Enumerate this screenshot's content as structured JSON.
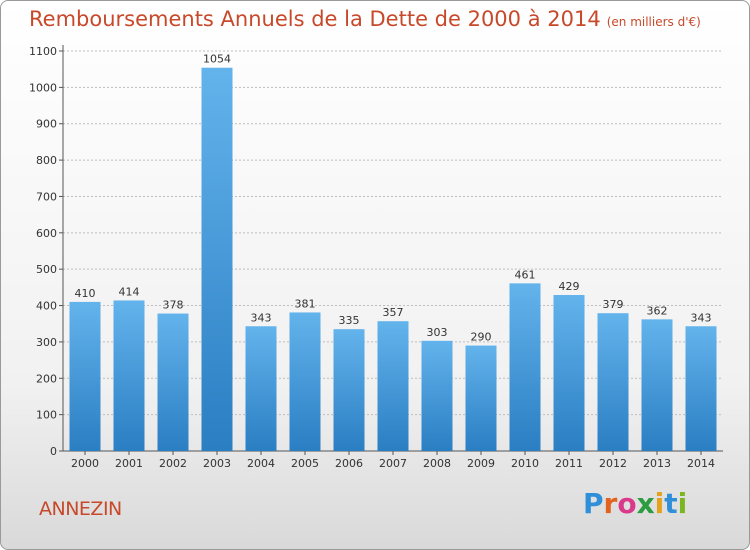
{
  "header": {
    "title": "Remboursements Annuels de la Dette de 2000 à 2014",
    "unit": "(en milliers d'€)"
  },
  "footer": {
    "city": "ANNEZIN",
    "logo": "Proxiti"
  },
  "colors": {
    "bar_top": "#63b3ec",
    "bar_bottom": "#2a7ec2",
    "title": "#c8492a",
    "grid": "#bdbdbd"
  },
  "chart_data": {
    "type": "bar",
    "title": "Remboursements Annuels de la Dette de 2000 à 2014",
    "subtitle": "(en milliers d'€)",
    "xlabel": "",
    "ylabel": "",
    "categories": [
      "2000",
      "2001",
      "2002",
      "2003",
      "2004",
      "2005",
      "2006",
      "2007",
      "2008",
      "2009",
      "2010",
      "2011",
      "2012",
      "2013",
      "2014"
    ],
    "values": [
      410,
      414,
      378,
      1054,
      343,
      381,
      335,
      357,
      303,
      290,
      461,
      429,
      379,
      362,
      343
    ],
    "ylim": [
      0,
      1100
    ],
    "yticks": [
      0,
      100,
      200,
      300,
      400,
      500,
      600,
      700,
      800,
      900,
      1000,
      1100
    ],
    "grid": true,
    "legend": "none"
  }
}
